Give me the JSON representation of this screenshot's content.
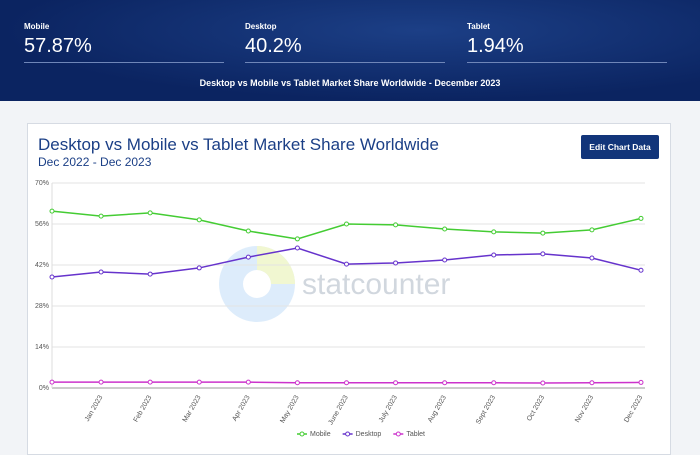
{
  "header": {
    "stats": [
      {
        "label": "Mobile",
        "value": "57.87%"
      },
      {
        "label": "Desktop",
        "value": "40.2%"
      },
      {
        "label": "Tablet",
        "value": "1.94%"
      }
    ],
    "banner": "Desktop vs Mobile vs Tablet Market Share Worldwide - December 2023"
  },
  "card": {
    "button": "Edit Chart Data",
    "watermark": "statcounter"
  },
  "chart_data": {
    "type": "line",
    "title": "Desktop vs Mobile vs Tablet Market Share Worldwide",
    "subtitle": "Dec 2022 - Dec 2023",
    "categories": [
      null,
      "Jan 2023",
      "Feb 2023",
      "Mar 2023",
      "Apr 2023",
      "May 2023",
      "June 2023",
      "July 2023",
      "Aug 2023",
      "Sept 2023",
      "Oct 2023",
      "Nov 2023",
      "Dec 2023"
    ],
    "series": [
      {
        "name": "Mobile",
        "color": "#44cc33",
        "values": [
          60.4,
          58.7,
          59.8,
          57.4,
          53.6,
          50.9,
          56.0,
          55.7,
          54.3,
          53.3,
          52.9,
          54.0,
          57.9
        ]
      },
      {
        "name": "Desktop",
        "color": "#6633cc",
        "values": [
          37.9,
          39.6,
          38.9,
          41.0,
          44.7,
          47.8,
          42.3,
          42.7,
          43.7,
          45.4,
          45.8,
          44.4,
          40.2
        ]
      },
      {
        "name": "Tablet",
        "color": "#cc33cc",
        "values": [
          2.0,
          2.0,
          2.0,
          2.0,
          2.0,
          1.8,
          1.8,
          1.8,
          1.8,
          1.8,
          1.7,
          1.8,
          1.9
        ]
      }
    ],
    "ylim": [
      0,
      70
    ],
    "yticks": [
      {
        "value": 0,
        "label": "0%"
      },
      {
        "value": 14,
        "label": "14%"
      },
      {
        "value": 28,
        "label": "28%"
      },
      {
        "value": 42,
        "label": "42%"
      },
      {
        "value": 56,
        "label": "56%"
      },
      {
        "value": 70,
        "label": "70%"
      }
    ],
    "grid": true,
    "legend": "bottom"
  }
}
